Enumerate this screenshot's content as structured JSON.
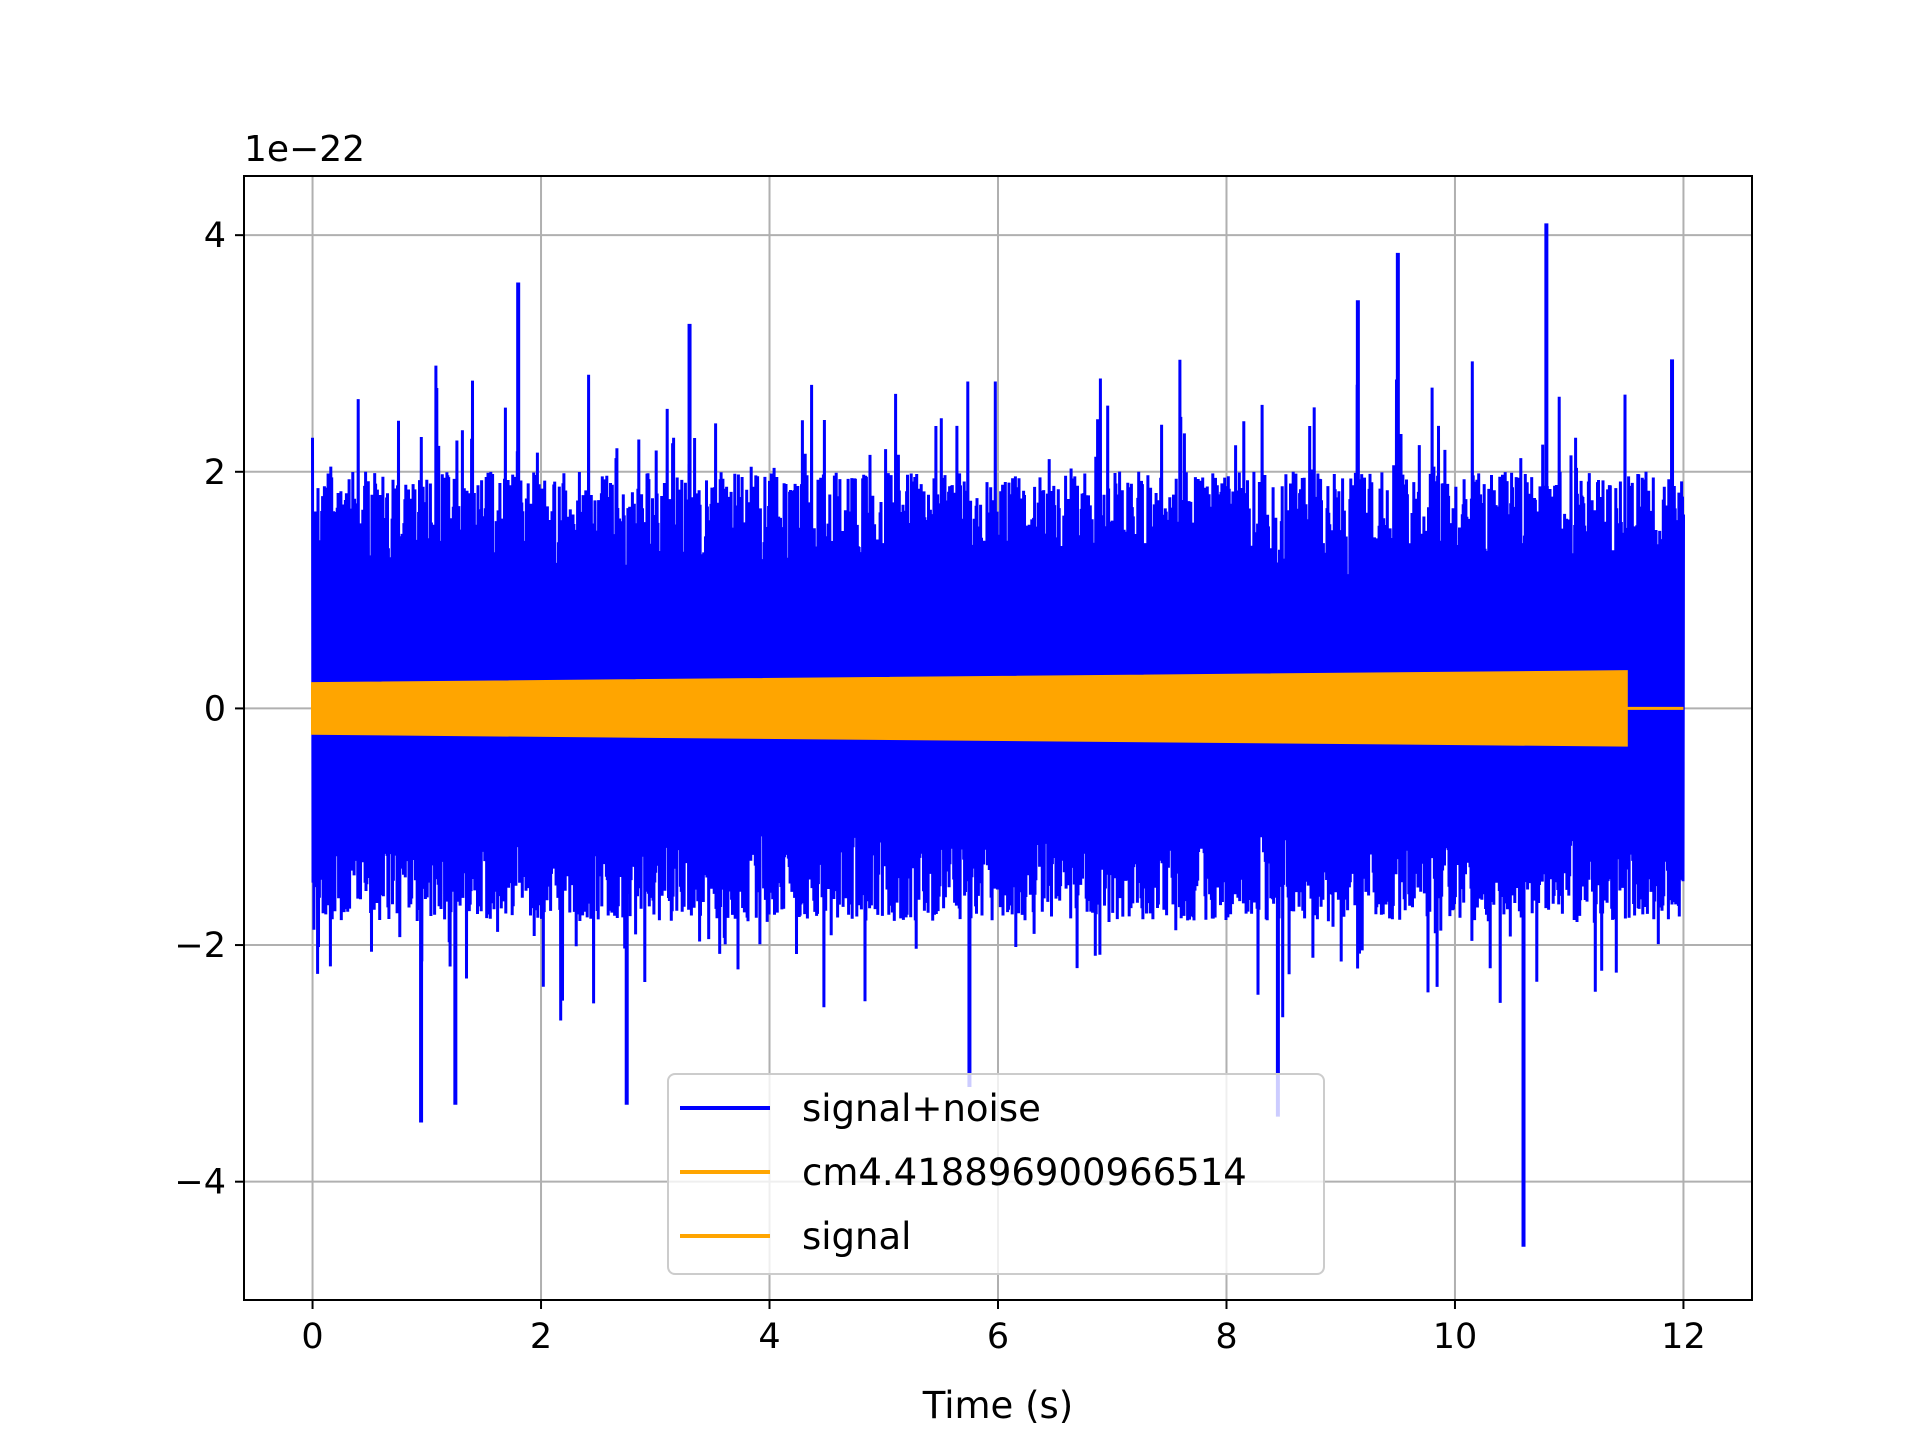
{
  "chart_data": {
    "type": "line",
    "xlabel": "Time (s)",
    "ylabel": "",
    "y_offset_label": "1e−22",
    "xlim": [
      -0.6,
      12.6
    ],
    "ylim": [
      -5.0,
      4.5
    ],
    "x_ticks": [
      0,
      2,
      4,
      6,
      8,
      10,
      12
    ],
    "x_tick_labels": [
      "0",
      "2",
      "4",
      "6",
      "8",
      "10",
      "12"
    ],
    "y_ticks": [
      -4,
      -2,
      0,
      2,
      4
    ],
    "y_tick_labels": [
      "−4",
      "−2",
      "0",
      "2",
      "4"
    ],
    "grid": true,
    "legend_position": "lower center",
    "series": [
      {
        "name": "signal+noise",
        "color": "#0000ff",
        "x_range": [
          0,
          12
        ],
        "typical_range": [
          -1.8,
          2.0
        ],
        "peaks": [
          {
            "x": 1.8,
            "y": 3.6
          },
          {
            "x": 3.3,
            "y": 3.25
          },
          {
            "x": 9.15,
            "y": 3.45
          },
          {
            "x": 9.5,
            "y": 3.85
          },
          {
            "x": 10.8,
            "y": 4.1
          },
          {
            "x": 11.9,
            "y": 2.95
          },
          {
            "x": 0.95,
            "y": -3.5
          },
          {
            "x": 1.25,
            "y": -3.35
          },
          {
            "x": 2.75,
            "y": -3.35
          },
          {
            "x": 5.75,
            "y": -3.2
          },
          {
            "x": 8.45,
            "y": -3.45
          },
          {
            "x": 10.6,
            "y": -4.55
          }
        ]
      },
      {
        "name": "cm4.418896900966514",
        "color": "#ffa500"
      },
      {
        "name": "signal",
        "color": "#ffa500",
        "x_range": [
          0,
          12
        ],
        "signal_end": 11.5,
        "amplitude_start": 0.21,
        "amplitude_end": 0.31
      }
    ]
  }
}
